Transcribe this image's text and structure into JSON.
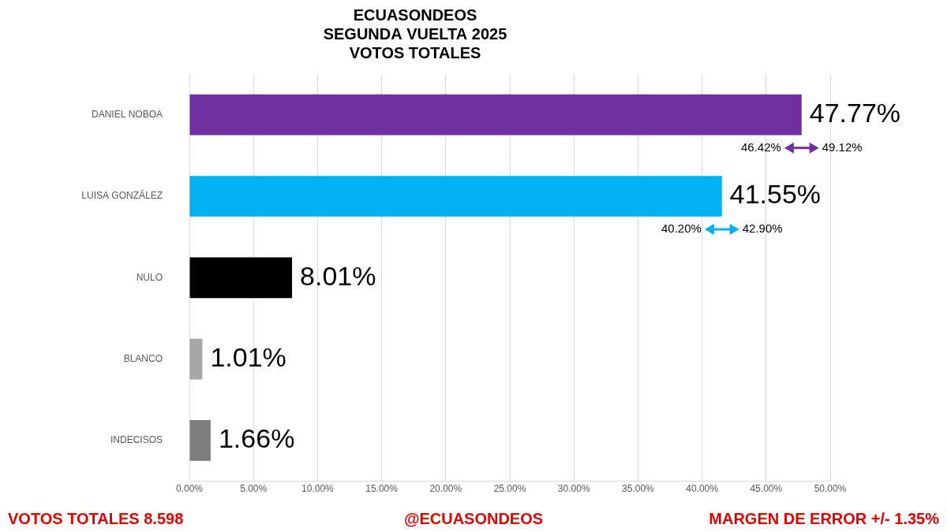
{
  "chart_data": {
    "type": "bar",
    "orientation": "horizontal",
    "title": [
      "ECUASONDEOS",
      "SEGUNDA VUELTA 2025",
      "VOTOS TOTALES"
    ],
    "categories": [
      "DANIEL NOBOA",
      "LUISA GONZÁLEZ",
      "NULO",
      "BLANCO",
      "INDECISOS"
    ],
    "values": [
      47.77,
      41.55,
      8.01,
      1.01,
      1.66
    ],
    "value_labels": [
      "47.77%",
      "41.55%",
      "8.01%",
      "1.01%",
      "1.66%"
    ],
    "colors": [
      "#7030a0",
      "#00b0f0",
      "#000000",
      "#a6a6a6",
      "#7f7f7f"
    ],
    "error_bars": [
      {
        "low": 46.42,
        "high": 49.12,
        "low_label": "46.42%",
        "high_label": "49.12%"
      },
      {
        "low": 40.2,
        "high": 42.9,
        "low_label": "40.20%",
        "high_label": "42.90%"
      },
      null,
      null,
      null
    ],
    "xlim": [
      0,
      50
    ],
    "xticks": [
      {
        "value": 0,
        "label": "0.00%"
      },
      {
        "value": 5,
        "label": "5.00%"
      },
      {
        "value": 10,
        "label": "10.00%"
      },
      {
        "value": 15,
        "label": "15.00%"
      },
      {
        "value": 20,
        "label": "20.00%"
      },
      {
        "value": 25,
        "label": "25.00%"
      },
      {
        "value": 30,
        "label": "30.00%"
      },
      {
        "value": 35,
        "label": "35.00%"
      },
      {
        "value": 40,
        "label": "40.00%"
      },
      {
        "value": 45,
        "label": "45.00%"
      },
      {
        "value": 50,
        "label": "50.00%"
      }
    ],
    "grid": true,
    "data_labels": true,
    "footer": {
      "left": "VOTOS TOTALES 8.598",
      "center": "@ECUASONDEOS",
      "right": "MARGEN DE ERROR +/- 1.35%"
    }
  }
}
